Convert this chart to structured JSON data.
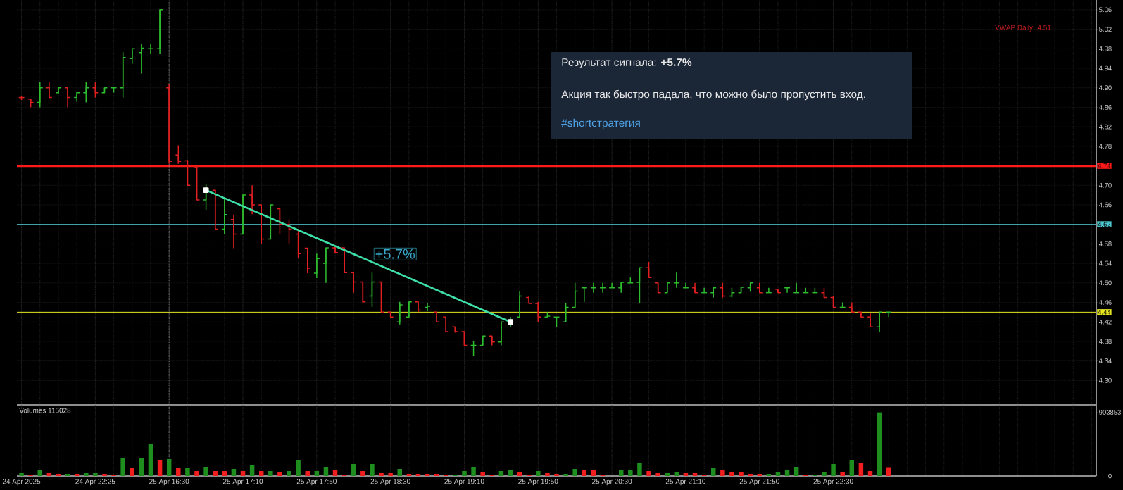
{
  "chart_data": [
    {
      "type": "candlestick",
      "categories": [
        "24 Apr 2025",
        null,
        null,
        null,
        null,
        null,
        null,
        null,
        "24 Apr 22:25",
        null,
        null,
        null,
        null,
        null,
        null,
        null,
        "25 Apr 16:30",
        null,
        null,
        null,
        null,
        null,
        null,
        null,
        "25 Apr 17:10",
        null,
        null,
        null,
        null,
        null,
        null,
        null,
        "25 Apr 17:50",
        null,
        null,
        null,
        null,
        null,
        null,
        null,
        "25 Apr 18:30",
        null,
        null,
        null,
        null,
        null,
        null,
        null,
        "25 Apr 19:10",
        null,
        null,
        null,
        null,
        null,
        null,
        null,
        "25 Apr 19:50",
        null,
        null,
        null,
        null,
        null,
        null,
        null,
        "25 Apr 20:30",
        null,
        null,
        null,
        null,
        null,
        null,
        null,
        "25 Apr 21:10",
        null,
        null,
        null,
        null,
        null,
        null,
        null,
        "25 Apr 21:50",
        null,
        null,
        null,
        null,
        null,
        null,
        null,
        "25 Apr 22:30",
        null,
        null,
        null,
        null,
        null,
        null,
        null,
        null,
        null,
        null,
        null,
        null,
        null,
        null,
        null,
        null,
        null,
        null,
        null,
        null,
        null,
        null,
        null,
        null,
        null,
        null,
        null,
        null
      ],
      "ohlc": [
        [
          4.88,
          4.882,
          4.875,
          4.88
        ],
        [
          4.877,
          4.878,
          4.86,
          4.87
        ],
        [
          4.87,
          4.912,
          4.86,
          4.9
        ],
        [
          4.9,
          4.911,
          4.88,
          4.88
        ],
        [
          4.89,
          4.9,
          4.888,
          4.9
        ],
        [
          4.9,
          4.902,
          4.86,
          4.88
        ],
        [
          4.88,
          4.891,
          4.871,
          4.89
        ],
        [
          4.89,
          4.912,
          4.87,
          4.9
        ],
        [
          4.9,
          4.911,
          4.88,
          4.89
        ],
        [
          4.89,
          4.9,
          4.89,
          4.9
        ],
        [
          4.9,
          4.9,
          4.89,
          4.9
        ],
        [
          4.9,
          4.973,
          4.88,
          4.962
        ],
        [
          4.96,
          4.981,
          4.949,
          4.98
        ],
        [
          4.972,
          4.99,
          4.929,
          4.981
        ],
        [
          4.98,
          4.99,
          4.97,
          4.98
        ],
        [
          4.98,
          5.06,
          4.97,
          5.06
        ],
        [
          4.9,
          4.908,
          4.744,
          4.749
        ],
        [
          4.762,
          4.782,
          4.744,
          4.749
        ],
        [
          4.75,
          4.752,
          4.7,
          4.7
        ],
        [
          4.738,
          4.738,
          4.67,
          4.67
        ],
        [
          4.67,
          4.702,
          4.65,
          4.69
        ],
        [
          4.69,
          4.691,
          4.61,
          4.61
        ],
        [
          4.61,
          4.672,
          4.6,
          4.64
        ],
        [
          4.63,
          4.64,
          4.571,
          4.6
        ],
        [
          4.6,
          4.681,
          4.6,
          4.68
        ],
        [
          4.68,
          4.7,
          4.641,
          4.66
        ],
        [
          4.66,
          4.66,
          4.58,
          4.59
        ],
        [
          4.59,
          4.66,
          4.589,
          4.66
        ],
        [
          4.652,
          4.652,
          4.6,
          4.62
        ],
        [
          4.62,
          4.63,
          4.581,
          4.61
        ],
        [
          4.6,
          4.61,
          4.55,
          4.56
        ],
        [
          4.571,
          4.571,
          4.52,
          4.53
        ],
        [
          4.52,
          4.56,
          4.51,
          4.55
        ],
        [
          4.54,
          4.572,
          4.5,
          4.572
        ],
        [
          4.572,
          4.574,
          4.56,
          4.562
        ],
        [
          4.572,
          4.572,
          4.521,
          4.521
        ],
        [
          4.521,
          4.521,
          4.48,
          4.502
        ],
        [
          4.502,
          4.502,
          4.458,
          4.461
        ],
        [
          4.473,
          4.521,
          4.451,
          4.502
        ],
        [
          4.502,
          4.502,
          4.44,
          4.44
        ],
        [
          4.44,
          4.441,
          4.43,
          4.43
        ],
        [
          4.42,
          4.461,
          4.415,
          4.455
        ],
        [
          4.43,
          4.461,
          4.43,
          4.461
        ],
        [
          4.461,
          4.461,
          4.44,
          4.444
        ],
        [
          4.45,
          4.458,
          4.442,
          4.452
        ],
        [
          4.44,
          4.44,
          4.42,
          4.42
        ],
        [
          4.43,
          4.43,
          4.4,
          4.4
        ],
        [
          4.41,
          4.41,
          4.398,
          4.4
        ],
        [
          4.4,
          4.4,
          4.372,
          4.372
        ],
        [
          4.372,
          4.381,
          4.35,
          4.372
        ],
        [
          4.372,
          4.391,
          4.372,
          4.391
        ],
        [
          4.391,
          4.391,
          4.372,
          4.379
        ],
        [
          4.379,
          4.42,
          4.372,
          4.42
        ],
        [
          4.42,
          4.43,
          4.41,
          4.42
        ],
        [
          4.43,
          4.483,
          4.43,
          4.473
        ],
        [
          4.47,
          4.473,
          4.458,
          4.458
        ],
        [
          4.458,
          4.461,
          4.42,
          4.43
        ],
        [
          4.43,
          4.44,
          4.43,
          4.432
        ],
        [
          4.43,
          4.43,
          4.41,
          4.43
        ],
        [
          4.42,
          4.459,
          4.42,
          4.45
        ],
        [
          4.45,
          4.5,
          4.45,
          4.483
        ],
        [
          4.49,
          4.492,
          4.461,
          4.49
        ],
        [
          4.49,
          4.5,
          4.48,
          4.49
        ],
        [
          4.49,
          4.5,
          4.48,
          4.49
        ],
        [
          4.49,
          4.5,
          4.49,
          4.49
        ],
        [
          4.49,
          4.502,
          4.48,
          4.501
        ],
        [
          4.5,
          4.511,
          4.5,
          4.5
        ],
        [
          4.501,
          4.531,
          4.458,
          4.531
        ],
        [
          4.531,
          4.543,
          4.511,
          4.511
        ],
        [
          4.5,
          4.5,
          4.48,
          4.48
        ],
        [
          4.48,
          4.5,
          4.48,
          4.5
        ],
        [
          4.5,
          4.521,
          4.49,
          4.5
        ],
        [
          4.49,
          4.5,
          4.49,
          4.49
        ],
        [
          4.49,
          4.5,
          4.48,
          4.48
        ],
        [
          4.48,
          4.49,
          4.48,
          4.48
        ],
        [
          4.48,
          4.492,
          4.47,
          4.49
        ],
        [
          4.49,
          4.5,
          4.47,
          4.473
        ],
        [
          4.473,
          4.49,
          4.47,
          4.48
        ],
        [
          4.48,
          4.492,
          4.48,
          4.491
        ],
        [
          4.49,
          4.5,
          4.482,
          4.5
        ],
        [
          4.49,
          4.5,
          4.48,
          4.48
        ],
        [
          4.48,
          4.49,
          4.48,
          4.48
        ],
        [
          4.487,
          4.487,
          4.48,
          4.48
        ],
        [
          4.49,
          4.49,
          4.48,
          4.49
        ],
        [
          4.48,
          4.5,
          4.48,
          4.48
        ],
        [
          4.48,
          4.49,
          4.48,
          4.48
        ],
        [
          4.48,
          4.49,
          4.48,
          4.48
        ],
        [
          4.48,
          4.49,
          4.47,
          4.47
        ],
        [
          4.47,
          4.473,
          4.45,
          4.45
        ],
        [
          4.45,
          4.46,
          4.45,
          4.45
        ],
        [
          4.45,
          4.46,
          4.44,
          4.44
        ],
        [
          4.44,
          4.44,
          4.43,
          4.43
        ],
        [
          4.43,
          4.439,
          4.41,
          4.41
        ],
        [
          4.41,
          4.44,
          4.4,
          4.44
        ],
        [
          4.44,
          4.441,
          4.43,
          4.44
        ],
        null,
        null,
        null,
        null,
        null,
        null,
        null,
        null,
        null,
        null,
        null,
        null,
        null,
        null,
        null,
        null,
        null,
        null,
        null,
        null,
        null,
        null
      ],
      "colors": [
        "#E02020",
        "#E02020",
        "#2EBD2E",
        "#E02020",
        "#2EBD2E",
        "#E02020",
        "#2EBD2E",
        "#2EBD2E",
        "#E02020",
        "#2EBD2E",
        "#2EBD2E",
        "#2EBD2E",
        "#2EBD2E",
        "#2EBD2E",
        "#2EBD2E",
        "#2EBD2E",
        "#E02020",
        "#E02020",
        "#E02020",
        "#E02020",
        "#2EBD2E",
        "#E02020",
        "#2EBD2E",
        "#E02020",
        "#2EBD2E",
        "#E02020",
        "#E02020",
        "#2EBD2E",
        "#E02020",
        "#E02020",
        "#E02020",
        "#E02020",
        "#2EBD2E",
        "#2EBD2E",
        "#E02020",
        "#E02020",
        "#E02020",
        "#E02020",
        "#2EBD2E",
        "#E02020",
        "#E02020",
        "#2EBD2E",
        "#2EBD2E",
        "#E02020",
        "#2EBD2E",
        "#E02020",
        "#E02020",
        "#E02020",
        "#E02020",
        "#2EBD2E",
        "#2EBD2E",
        "#E02020",
        "#2EBD2E",
        "#2EBD2E",
        "#2EBD2E",
        "#E02020",
        "#E02020",
        "#2EBD2E",
        "#2EBD2E",
        "#2EBD2E",
        "#2EBD2E",
        "#2EBD2E",
        "#2EBD2E",
        "#2EBD2E",
        "#2EBD2E",
        "#2EBD2E",
        "#2EBD2E",
        "#2EBD2E",
        "#E02020",
        "#E02020",
        "#2EBD2E",
        "#2EBD2E",
        "#2EBD2E",
        "#E02020",
        "#2EBD2E",
        "#2EBD2E",
        "#E02020",
        "#2EBD2E",
        "#2EBD2E",
        "#2EBD2E",
        "#E02020",
        "#2EBD2E",
        "#E02020",
        "#2EBD2E",
        "#2EBD2E",
        "#2EBD2E",
        "#2EBD2E",
        "#E02020",
        "#E02020",
        "#2EBD2E",
        "#E02020",
        "#E02020",
        "#E02020",
        "#2EBD2E",
        "#2EBD2E",
        null,
        null,
        null,
        null,
        null,
        null,
        null,
        null,
        null,
        null,
        null,
        null,
        null,
        null,
        null,
        null,
        null,
        null,
        null,
        null,
        null,
        null
      ],
      "series": [
        {
          "type": "line",
          "color": "#3EE0A8",
          "marker": "square",
          "values": [
            null,
            null,
            null,
            null,
            null,
            null,
            null,
            null,
            null,
            null,
            null,
            null,
            null,
            null,
            null,
            null,
            null,
            null,
            null,
            null,
            4.69,
            null,
            null,
            null,
            null,
            null,
            null,
            null,
            null,
            null,
            null,
            null,
            null,
            null,
            null,
            null,
            null,
            null,
            null,
            null,
            null,
            null,
            null,
            null,
            null,
            null,
            null,
            null,
            null,
            null,
            null,
            null,
            null,
            4.42,
            null,
            null,
            null,
            null,
            null,
            null,
            null,
            null,
            null,
            null,
            null,
            null,
            null,
            null,
            null,
            null,
            null,
            null,
            null,
            null,
            null,
            null,
            null,
            null,
            null,
            null,
            null,
            null,
            null,
            null,
            null,
            null,
            null,
            null,
            null,
            null,
            null,
            null,
            null,
            null,
            null,
            null,
            null,
            null,
            null,
            null,
            null,
            null,
            null,
            null,
            null,
            null,
            null,
            null,
            null,
            null,
            null,
            null,
            null,
            null,
            null,
            null,
            null
          ]
        }
      ],
      "ylim": [
        4.25,
        5.08
      ],
      "yticks": [
        {
          "value": 4.3,
          "label": "4.30"
        },
        4.34,
        4.38,
        4.42,
        4.46,
        {
          "value": 4.5,
          "label": "4.50"
        },
        4.54,
        4.58,
        4.66,
        {
          "value": 4.7,
          "label": "4.70"
        },
        4.78,
        4.82,
        4.86,
        {
          "value": 4.9,
          "label": "4.90"
        },
        4.94,
        4.98,
        5.02,
        5.06
      ],
      "tick_labels": "y",
      "grid": true,
      "ref_lines": [
        {
          "axis": "y",
          "value": 4.74,
          "label": "4.74",
          "color": "#FF1A1A"
        },
        {
          "axis": "y",
          "value": 4.62,
          "label": "4.62",
          "color": "#4CC4CC"
        },
        {
          "axis": "y",
          "value": 4.44,
          "label": "4.44",
          "color": "#E8E820"
        },
        {
          "axis": "x",
          "value": "25 Apr 16:30",
          "color": "#A8A8A8",
          "line_style": "dotted"
        }
      ],
      "annotations": [
        "VWAP Daily: 4.51",
        "Результат сигнала: **+5.7%**",
        "Акция так быстро падала, что можно было пропустить вход.",
        "#shortстратегия",
        "+5.7%"
      ]
    },
    {
      "type": "bar",
      "title": "Volumes 115028",
      "categories": [
        "24 Apr 2025",
        null,
        null,
        null,
        null,
        null,
        null,
        null,
        "24 Apr 22:25",
        null,
        null,
        null,
        null,
        null,
        null,
        null,
        "25 Apr 16:30",
        null,
        null,
        null,
        null,
        null,
        null,
        null,
        "25 Apr 17:10",
        null,
        null,
        null,
        null,
        null,
        null,
        null,
        "25 Apr 17:50",
        null,
        null,
        null,
        null,
        null,
        null,
        null,
        "25 Apr 18:30",
        null,
        null,
        null,
        null,
        null,
        null,
        null,
        "25 Apr 19:10",
        null,
        null,
        null,
        null,
        null,
        null,
        null,
        "25 Apr 19:50",
        null,
        null,
        null,
        null,
        null,
        null,
        null,
        "25 Apr 20:30",
        null,
        null,
        null,
        null,
        null,
        null,
        null,
        "25 Apr 21:10",
        null,
        null,
        null,
        null,
        null,
        null,
        null,
        "25 Apr 21:50",
        null,
        null,
        null,
        null,
        null,
        null,
        null,
        "25 Apr 22:30",
        null,
        null,
        null,
        null,
        null,
        null,
        null,
        null,
        null,
        null,
        null,
        null,
        null,
        null,
        null,
        null,
        null,
        null,
        null,
        null,
        null,
        null,
        null,
        null,
        null,
        null,
        null,
        null
      ],
      "values": [
        40000,
        20000,
        90000,
        40000,
        30000,
        30000,
        30000,
        40000,
        40000,
        30000,
        10000,
        260000,
        110000,
        260000,
        460000,
        220000,
        240000,
        110000,
        110000,
        70000,
        120000,
        70000,
        70000,
        100000,
        70000,
        150000,
        70000,
        70000,
        60000,
        70000,
        230000,
        70000,
        70000,
        130000,
        90000,
        20000,
        170000,
        70000,
        170000,
        40000,
        40000,
        100000,
        30000,
        30000,
        30000,
        30000,
        10000,
        10000,
        70000,
        120000,
        60000,
        20000,
        70000,
        80000,
        60000,
        10000,
        70000,
        40000,
        30000,
        30000,
        100000,
        90000,
        90000,
        20000,
        null,
        80000,
        90000,
        190000,
        70000,
        40000,
        40000,
        60000,
        40000,
        40000,
        20000,
        110000,
        90000,
        50000,
        50000,
        30000,
        30000,
        30000,
        60000,
        80000,
        120000,
        10000,
        10000,
        60000,
        170000,
        60000,
        220000,
        190000,
        70000,
        903853,
        115028,
        null,
        null,
        null,
        null,
        null,
        null,
        null,
        null,
        null,
        null,
        null,
        null,
        null,
        null,
        null,
        null,
        null,
        null,
        null,
        null,
        null,
        null
      ],
      "colors": [
        "#1E8F1E",
        "#F01E1E",
        "#1E8F1E",
        "#F01E1E",
        "#F01E1E",
        "#1E8F1E",
        "#F01E1E",
        "#1E8F1E",
        "#1E8F1E",
        "#F01E1E",
        "#F01E1E",
        "#1E8F1E",
        "#F01E1E",
        "#1E8F1E",
        "#1E8F1E",
        "#F01E1E",
        "#1E8F1E",
        "#F01E1E",
        "#1E8F1E",
        "#F01E1E",
        "#1E8F1E",
        "#F01E1E",
        "#F01E1E",
        "#1E8F1E",
        "#F01E1E",
        "#1E8F1E",
        "#F01E1E",
        "#1E8F1E",
        "#F01E1E",
        "#1E8F1E",
        "#1E8F1E",
        "#F01E1E",
        "#1E8F1E",
        "#1E8F1E",
        "#F01E1E",
        "#F01E1E",
        "#1E8F1E",
        "#F01E1E",
        "#1E8F1E",
        "#F01E1E",
        "#F01E1E",
        "#1E8F1E",
        "#F01E1E",
        "#F01E1E",
        "#F01E1E",
        "#F01E1E",
        "#F01E1E",
        "#1E8F1E",
        "#1E8F1E",
        "#1E8F1E",
        "#F01E1E",
        "#F01E1E",
        "#1E8F1E",
        "#1E8F1E",
        "#F01E1E",
        "#F01E1E",
        "#1E8F1E",
        "#F01E1E",
        "#F01E1E",
        "#1E8F1E",
        "#1E8F1E",
        "#F01E1E",
        "#F01E1E",
        "#F01E1E",
        "#F01E1E",
        "#1E8F1E",
        "#1E8F1E",
        "#1E8F1E",
        "#F01E1E",
        "#F01E1E",
        "#1E8F1E",
        "#1E8F1E",
        "#F01E1E",
        "#F01E1E",
        "#F01E1E",
        "#1E8F1E",
        "#F01E1E",
        "#F01E1E",
        "#F01E1E",
        "#F01E1E",
        "#F01E1E",
        "#1E8F1E",
        "#1E8F1E",
        "#1E8F1E",
        "#1E8F1E",
        "#F01E1E",
        "#1E8F1E",
        "#1E8F1E",
        "#1E8F1E",
        "#F01E1E",
        "#1E8F1E",
        "#F01E1E",
        "#F01E1E",
        "#1E8F1E",
        "#F01E1E",
        null,
        null,
        null,
        null,
        null,
        null,
        null,
        null,
        null,
        null,
        null,
        null,
        null,
        null,
        null,
        null,
        null,
        null,
        null,
        null,
        null,
        null
      ],
      "ylim": [
        0,
        1010000
      ],
      "yticks": [
        0,
        903853
      ],
      "grid": "x",
      "ref_lines": [
        {
          "axis": "x",
          "value": "25 Apr 16:30",
          "color": "#A8A8A8",
          "line_style": "dotted"
        }
      ]
    }
  ]
}
